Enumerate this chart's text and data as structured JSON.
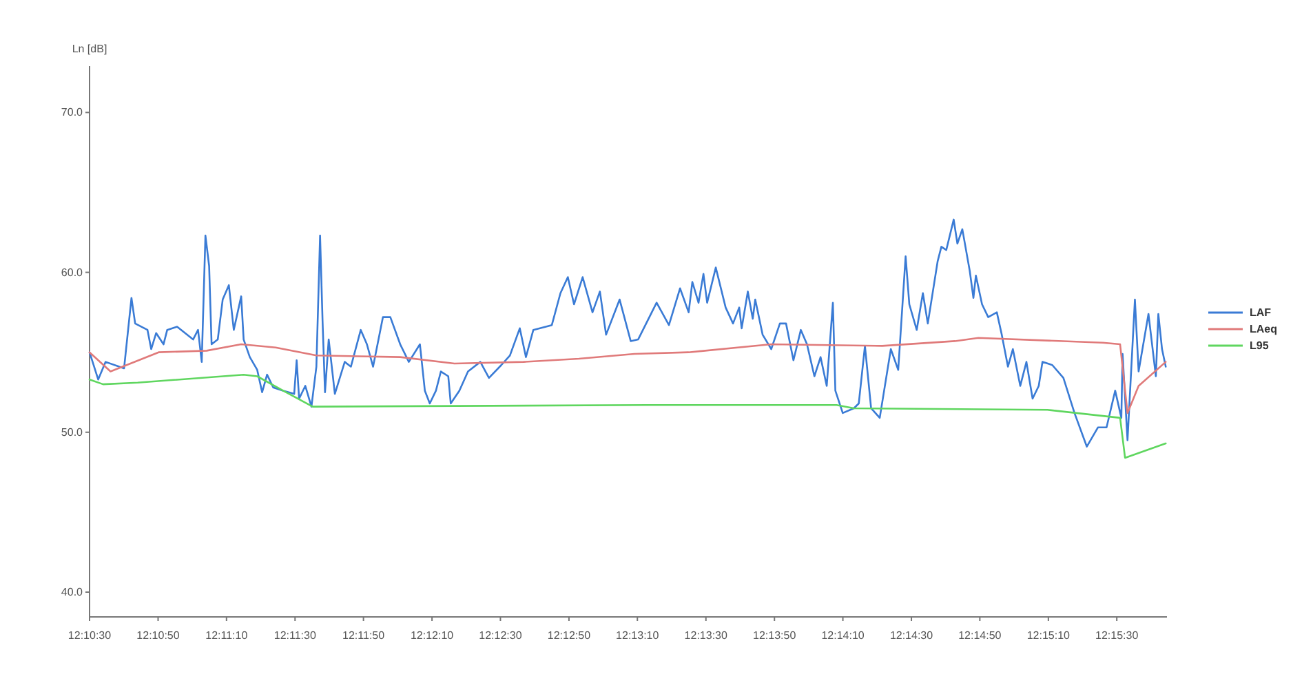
{
  "chart_data": {
    "type": "line",
    "ylabel": "Ln [dB]",
    "xlim": [
      12.175,
      12.2624
    ],
    "ylim": [
      38.45,
      72.9
    ],
    "yticks": [
      {
        "value": 40,
        "label": "40.0"
      },
      {
        "value": 50,
        "label": "50.0"
      },
      {
        "value": 60,
        "label": "60.0"
      },
      {
        "value": 70,
        "label": "70.0"
      }
    ],
    "xticks": [
      {
        "value": 12.175,
        "label": "12:10:30"
      },
      {
        "value": 12.18056,
        "label": "12:10:50"
      },
      {
        "value": 12.18611,
        "label": "12:11:10"
      },
      {
        "value": 12.19167,
        "label": "12:11:30"
      },
      {
        "value": 12.19722,
        "label": "12:11:50"
      },
      {
        "value": 12.20278,
        "label": "12:12:10"
      },
      {
        "value": 12.20833,
        "label": "12:12:30"
      },
      {
        "value": 12.21389,
        "label": "12:12:50"
      },
      {
        "value": 12.21944,
        "label": "12:13:10"
      },
      {
        "value": 12.225,
        "label": "12:13:30"
      },
      {
        "value": 12.23056,
        "label": "12:13:50"
      },
      {
        "value": 12.23611,
        "label": "12:14:10"
      },
      {
        "value": 12.24167,
        "label": "12:14:30"
      },
      {
        "value": 12.24722,
        "label": "12:14:50"
      },
      {
        "value": 12.25278,
        "label": "12:15:10"
      },
      {
        "value": 12.25833,
        "label": "12:15:30"
      }
    ],
    "grid": false,
    "legend": "right",
    "marker": "none",
    "line_style": "solid",
    "series": [
      {
        "name": "LAF",
        "color": "#3a7bd5",
        "x": [
          12.175,
          12.1757,
          12.1763,
          12.1774,
          12.1778,
          12.1784,
          12.1787,
          12.1797,
          12.18,
          12.1804,
          12.181,
          12.1813,
          12.1821,
          12.1834,
          12.1838,
          12.1841,
          12.1844,
          12.1847,
          12.1849,
          12.1854,
          12.1858,
          12.1863,
          12.1867,
          12.1873,
          12.1875,
          12.188,
          12.1886,
          12.189,
          12.1894,
          12.1899,
          12.1907,
          12.1916,
          12.1918,
          12.192,
          12.1925,
          12.193,
          12.1934,
          12.1937,
          12.1939,
          12.1941,
          12.1944,
          12.1949,
          12.1957,
          12.1962,
          12.197,
          12.1975,
          12.198,
          12.1988,
          12.1994,
          12.2002,
          12.2009,
          12.2018,
          12.2022,
          12.2026,
          12.2031,
          12.2035,
          12.2041,
          12.2043,
          12.205,
          12.2057,
          12.2067,
          12.2074,
          12.2084,
          12.2091,
          12.2099,
          12.2104,
          12.211,
          12.2125,
          12.2132,
          12.2138,
          12.2143,
          12.215,
          12.2158,
          12.2164,
          12.2169,
          12.218,
          12.2189,
          12.2195,
          12.221,
          12.222,
          12.2229,
          12.2236,
          12.2239,
          12.2244,
          12.2248,
          12.2251,
          12.2258,
          12.2266,
          12.2272,
          12.2277,
          12.2279,
          12.2284,
          12.2288,
          12.229,
          12.2296,
          12.2303,
          12.231,
          12.2315,
          12.2321,
          12.2327,
          12.2332,
          12.2338,
          12.2343,
          12.2348,
          12.2353,
          12.2355,
          12.2361,
          12.237,
          12.2374,
          12.2379,
          12.2384,
          12.2391,
          12.24,
          12.2406,
          12.2412,
          12.2415,
          12.2421,
          12.2426,
          12.243,
          12.2438,
          12.2441,
          12.2445,
          12.2451,
          12.2454,
          12.2458,
          12.2464,
          12.2467,
          12.2469,
          12.2474,
          12.2479,
          12.2486,
          12.249,
          12.2495,
          12.2499,
          12.2505,
          12.251,
          12.2515,
          12.252,
          12.2523,
          12.2531,
          12.254,
          12.2549,
          12.2559,
          12.2568,
          12.2575,
          12.2582,
          12.2587,
          12.2588,
          12.2592,
          12.2598,
          12.2601,
          12.2609,
          12.2615,
          12.2617,
          12.262,
          12.2623
        ],
        "values": [
          55.0,
          53.3,
          54.4,
          54.1,
          54.0,
          58.4,
          56.8,
          56.4,
          55.2,
          56.2,
          55.5,
          56.4,
          56.6,
          55.8,
          56.4,
          54.4,
          62.3,
          60.4,
          55.5,
          55.8,
          58.3,
          59.2,
          56.4,
          58.5,
          55.8,
          54.7,
          53.9,
          52.5,
          53.6,
          52.8,
          52.6,
          52.4,
          54.5,
          52.1,
          52.9,
          51.6,
          54.1,
          62.3,
          57.0,
          52.5,
          55.8,
          52.4,
          54.4,
          54.1,
          56.4,
          55.5,
          54.1,
          57.2,
          57.2,
          55.5,
          54.4,
          55.5,
          52.6,
          51.8,
          52.6,
          53.8,
          53.5,
          51.8,
          52.6,
          53.8,
          54.4,
          53.4,
          54.2,
          54.8,
          56.5,
          54.7,
          56.4,
          56.7,
          58.7,
          59.7,
          58.0,
          59.7,
          57.5,
          58.8,
          56.1,
          58.3,
          55.7,
          55.8,
          58.1,
          56.7,
          59.0,
          57.5,
          59.4,
          58.1,
          59.9,
          58.1,
          60.3,
          57.8,
          56.8,
          57.8,
          56.5,
          58.8,
          57.1,
          58.3,
          56.1,
          55.2,
          56.8,
          56.8,
          54.5,
          56.4,
          55.5,
          53.5,
          54.7,
          52.9,
          58.1,
          52.6,
          51.2,
          51.5,
          51.8,
          55.4,
          51.5,
          50.9,
          55.2,
          53.9,
          61.0,
          58.0,
          56.4,
          58.7,
          56.8,
          60.7,
          61.6,
          61.4,
          63.3,
          61.8,
          62.7,
          60.1,
          58.4,
          59.8,
          58.0,
          57.2,
          57.5,
          56.1,
          54.1,
          55.2,
          52.9,
          54.4,
          52.1,
          52.9,
          54.4,
          54.2,
          53.4,
          51.2,
          49.1,
          50.3,
          50.3,
          52.6,
          50.9,
          54.9,
          49.5,
          58.3,
          53.8,
          57.4,
          53.5,
          57.4,
          55.2,
          54.1
        ]
      },
      {
        "name": "LAeq",
        "color": "#e07a7a",
        "x": [
          12.175,
          12.1767,
          12.1806,
          12.1845,
          12.1873,
          12.1901,
          12.1934,
          12.2002,
          12.2046,
          12.2102,
          12.2147,
          12.2192,
          12.2236,
          12.2303,
          12.2393,
          12.2452,
          12.2471,
          12.2572,
          12.2586,
          12.2592,
          12.2601,
          12.2623
        ],
        "values": [
          55.0,
          53.8,
          55.0,
          55.1,
          55.5,
          55.3,
          54.8,
          54.7,
          54.3,
          54.4,
          54.6,
          54.9,
          55.0,
          55.5,
          55.4,
          55.7,
          55.9,
          55.6,
          55.5,
          51.2,
          52.9,
          54.4
        ]
      },
      {
        "name": "L95",
        "color": "#5fd65f",
        "x": [
          12.175,
          12.1761,
          12.1789,
          12.1875,
          12.1886,
          12.1907,
          12.1931,
          12.2203,
          12.2356,
          12.237,
          12.2527,
          12.2586,
          12.259,
          12.2623
        ],
        "values": [
          53.3,
          53.0,
          53.1,
          53.6,
          53.5,
          52.6,
          51.6,
          51.7,
          51.7,
          51.5,
          51.4,
          50.9,
          48.4,
          49.3
        ]
      }
    ]
  }
}
